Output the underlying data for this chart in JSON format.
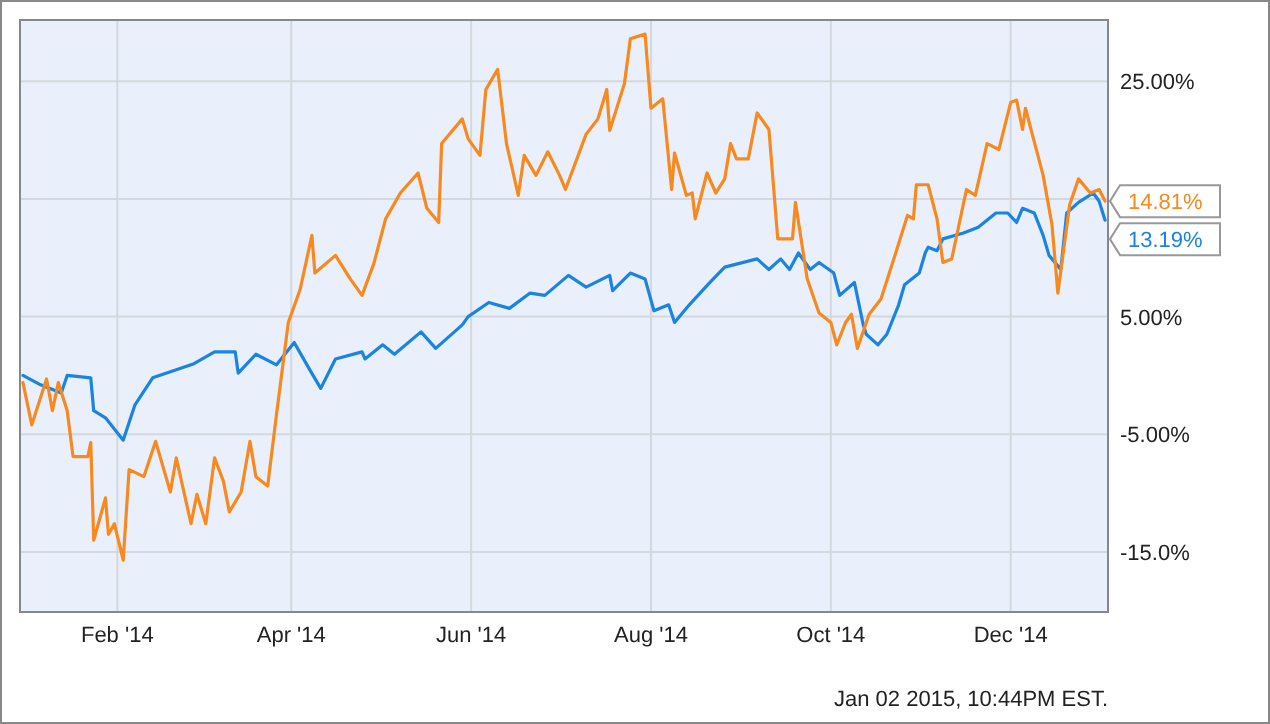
{
  "chart_data": {
    "type": "line",
    "xlim": [
      "2013-12-30",
      "2015-01-03"
    ],
    "ylim": [
      -20.1,
      30.2
    ],
    "xticks": [
      {
        "value": "2014-02-01",
        "label": "Feb '14"
      },
      {
        "value": "2014-04-01",
        "label": "Apr '14"
      },
      {
        "value": "2014-06-01",
        "label": "Jun '14"
      },
      {
        "value": "2014-08-01",
        "label": "Aug '14"
      },
      {
        "value": "2014-10-01",
        "label": "Oct '14"
      },
      {
        "value": "2014-12-01",
        "label": "Dec '14"
      }
    ],
    "yticks": [
      {
        "value": -15,
        "label": "-15.0%"
      },
      {
        "value": -5,
        "label": "-5.00%"
      },
      {
        "value": 5,
        "label": "5.00%"
      },
      {
        "value": 15,
        "label": null
      },
      {
        "value": 25,
        "label": "25.00%"
      }
    ],
    "grid": true,
    "marker": "none",
    "line_style": "solid",
    "annotations": [
      "Jan 02 2015, 10:44PM EST."
    ],
    "series": [
      {
        "color": "#1a84e0",
        "x": [
          "2013-12-31",
          "2014-01-06",
          "2014-01-13",
          "2014-01-15",
          "2014-01-23",
          "2014-01-24",
          "2014-01-28",
          "2014-02-03",
          "2014-02-07",
          "2014-02-13",
          "2014-02-27",
          "2014-03-06",
          "2014-03-13",
          "2014-03-14",
          "2014-03-20",
          "2014-03-27",
          "2014-04-02",
          "2014-04-07",
          "2014-04-11",
          "2014-04-16",
          "2014-04-25",
          "2014-04-26",
          "2014-05-02",
          "2014-05-06",
          "2014-05-15",
          "2014-05-20",
          "2014-05-29",
          "2014-05-31",
          "2014-06-07",
          "2014-06-14",
          "2014-06-21",
          "2014-06-26",
          "2014-07-04",
          "2014-07-10",
          "2014-07-18",
          "2014-07-19",
          "2014-07-25",
          "2014-07-30",
          "2014-08-02",
          "2014-08-07",
          "2014-08-09",
          "2014-08-14",
          "2014-08-21",
          "2014-08-26",
          "2014-09-06",
          "2014-09-10",
          "2014-09-14",
          "2014-09-17",
          "2014-09-20",
          "2014-09-24",
          "2014-09-27",
          "2014-10-02",
          "2014-10-04",
          "2014-10-09",
          "2014-10-12",
          "2014-10-13",
          "2014-10-17",
          "2014-10-20",
          "2014-10-24",
          "2014-10-26",
          "2014-10-31",
          "2014-11-02",
          "2014-11-03",
          "2014-11-06",
          "2014-11-08",
          "2014-11-15",
          "2014-11-20",
          "2014-11-26",
          "2014-11-30",
          "2014-12-03",
          "2014-12-05",
          "2014-12-09",
          "2014-12-12",
          "2014-12-14",
          "2014-12-18",
          "2014-12-20",
          "2014-12-24",
          "2014-12-29",
          "2014-12-31",
          "2015-01-02"
        ],
        "values": [
          0,
          -0.8,
          -1.5,
          0,
          -0.2,
          -3,
          -3.6,
          -5.5,
          -2.5,
          -0.2,
          1,
          2,
          2,
          0.2,
          1.8,
          0.9,
          2.8,
          0.6,
          -1.1,
          1.4,
          2,
          1.4,
          2.6,
          1.8,
          3.7,
          2.3,
          4.3,
          5,
          6.2,
          5.7,
          7,
          6.8,
          8.5,
          7.5,
          8.5,
          7.2,
          8.7,
          8.2,
          5.5,
          6,
          4.5,
          6,
          7.9,
          9.2,
          9.9,
          9,
          9.9,
          9,
          10.4,
          9,
          9.6,
          8.7,
          6.8,
          7.9,
          4.3,
          3.5,
          2.6,
          3.5,
          6,
          7.7,
          8.7,
          10.4,
          10.9,
          10.6,
          11.6,
          12.1,
          12.6,
          13.8,
          13.8,
          13,
          14.2,
          13.8,
          11.9,
          10.2,
          9,
          13.8,
          14.7,
          15.5,
          14.8,
          13.19
        ],
        "value_labels": [
          null,
          null,
          null,
          null,
          null,
          null,
          null,
          null,
          null,
          null,
          null,
          null,
          null,
          null,
          null,
          null,
          null,
          null,
          null,
          null,
          null,
          null,
          null,
          null,
          null,
          null,
          null,
          null,
          null,
          null,
          null,
          null,
          null,
          null,
          null,
          null,
          null,
          null,
          null,
          null,
          null,
          null,
          null,
          null,
          null,
          null,
          null,
          null,
          null,
          null,
          null,
          null,
          null,
          null,
          null,
          null,
          null,
          null,
          null,
          null,
          null,
          null,
          null,
          null,
          null,
          null,
          null,
          null,
          null,
          null,
          null,
          null,
          null,
          null,
          null,
          null,
          null,
          null,
          null,
          "13.19%"
        ]
      },
      {
        "color": "#f7891f",
        "x": [
          "2013-12-31",
          "2014-01-03",
          "2014-01-08",
          "2014-01-10",
          "2014-01-12",
          "2014-01-15",
          "2014-01-17",
          "2014-01-22",
          "2014-01-23",
          "2014-01-24",
          "2014-01-28",
          "2014-01-29",
          "2014-01-31",
          "2014-02-03",
          "2014-02-05",
          "2014-02-10",
          "2014-02-14",
          "2014-02-19",
          "2014-02-21",
          "2014-02-26",
          "2014-02-28",
          "2014-03-03",
          "2014-03-06",
          "2014-03-09",
          "2014-03-11",
          "2014-03-15",
          "2014-03-18",
          "2014-03-20",
          "2014-03-24",
          "2014-03-27",
          "2014-03-31",
          "2014-04-04",
          "2014-04-08",
          "2014-04-09",
          "2014-04-16",
          "2014-04-21",
          "2014-04-25",
          "2014-04-29",
          "2014-05-03",
          "2014-05-08",
          "2014-05-14",
          "2014-05-17",
          "2014-05-21",
          "2014-05-22",
          "2014-05-29",
          "2014-05-31",
          "2014-06-04",
          "2014-06-06",
          "2014-06-10",
          "2014-06-13",
          "2014-06-17",
          "2014-06-19",
          "2014-06-23",
          "2014-06-27",
          "2014-07-01",
          "2014-07-03",
          "2014-07-10",
          "2014-07-14",
          "2014-07-17",
          "2014-07-18",
          "2014-07-23",
          "2014-07-25",
          "2014-07-30",
          "2014-08-01",
          "2014-08-05",
          "2014-08-08",
          "2014-08-09",
          "2014-08-13",
          "2014-08-15",
          "2014-08-16",
          "2014-08-20",
          "2014-08-23",
          "2014-08-26",
          "2014-08-28",
          "2014-08-30",
          "2014-09-03",
          "2014-09-06",
          "2014-09-10",
          "2014-09-13",
          "2014-09-18",
          "2014-09-19",
          "2014-09-23",
          "2014-09-27",
          "2014-10-01",
          "2014-10-03",
          "2014-10-06",
          "2014-10-08",
          "2014-10-10",
          "2014-10-14",
          "2014-10-18",
          "2014-10-23",
          "2014-10-27",
          "2014-10-29",
          "2014-10-30",
          "2014-11-03",
          "2014-11-06",
          "2014-11-08",
          "2014-11-11",
          "2014-11-16",
          "2014-11-19",
          "2014-11-23",
          "2014-11-27",
          "2014-12-01",
          "2014-12-03",
          "2014-12-05",
          "2014-12-06",
          "2014-12-12",
          "2014-12-15",
          "2014-12-17",
          "2014-12-21",
          "2014-12-24",
          "2014-12-28",
          "2014-12-31",
          "2015-01-02"
        ],
        "values": [
          -0.6,
          -4.2,
          -0.3,
          -3,
          -0.6,
          -3,
          -6.9,
          -6.9,
          -5.7,
          -14,
          -10.4,
          -13.5,
          -12.6,
          -15.7,
          -8,
          -8.6,
          -5.6,
          -9.9,
          -7,
          -12.6,
          -10.1,
          -12.6,
          -7,
          -9,
          -11.6,
          -9.9,
          -5.6,
          -8.6,
          -9.4,
          -3.3,
          4.5,
          7.3,
          11.9,
          8.7,
          10.2,
          8.2,
          6.8,
          9.5,
          13.3,
          15.5,
          17.2,
          14.2,
          13,
          19.7,
          21.8,
          20.1,
          18.7,
          24.3,
          26,
          19.7,
          15.3,
          18.7,
          17,
          19,
          17,
          15.8,
          20.5,
          21.8,
          24.3,
          20.8,
          24.8,
          28.6,
          29,
          22.7,
          23.5,
          15.8,
          18.9,
          15.3,
          15.5,
          13.3,
          17.2,
          15.5,
          16.7,
          19.7,
          18.4,
          18.4,
          22.3,
          20.9,
          11.6,
          11.6,
          14.7,
          8.2,
          5.3,
          4.5,
          2.6,
          4.5,
          5.2,
          2.3,
          5.2,
          6.5,
          10.4,
          13.6,
          13.3,
          16.2,
          16.2,
          13.3,
          9.6,
          9.9,
          15.8,
          15.3,
          19.7,
          19.2,
          23.2,
          23.4,
          20.9,
          22.7,
          17,
          12.8,
          7,
          14.5,
          16.7,
          15.5,
          15.8,
          14.81
        ],
        "value_labels": [
          null,
          null,
          null,
          null,
          null,
          null,
          null,
          null,
          null,
          null,
          null,
          null,
          null,
          null,
          null,
          null,
          null,
          null,
          null,
          null,
          null,
          null,
          null,
          null,
          null,
          null,
          null,
          null,
          null,
          null,
          null,
          null,
          null,
          null,
          null,
          null,
          null,
          null,
          null,
          null,
          null,
          null,
          null,
          null,
          null,
          null,
          null,
          null,
          null,
          null,
          null,
          null,
          null,
          null,
          null,
          null,
          null,
          null,
          null,
          null,
          null,
          null,
          null,
          null,
          null,
          null,
          null,
          null,
          null,
          null,
          null,
          null,
          null,
          null,
          null,
          null,
          null,
          null,
          null,
          null,
          null,
          null,
          null,
          null,
          null,
          null,
          null,
          null,
          null,
          null,
          null,
          null,
          null,
          null,
          null,
          null,
          null,
          null,
          null,
          null,
          null,
          null,
          null,
          null,
          null,
          null,
          null,
          null,
          null,
          null,
          null,
          null,
          null,
          "14.81%"
        ]
      }
    ]
  }
}
